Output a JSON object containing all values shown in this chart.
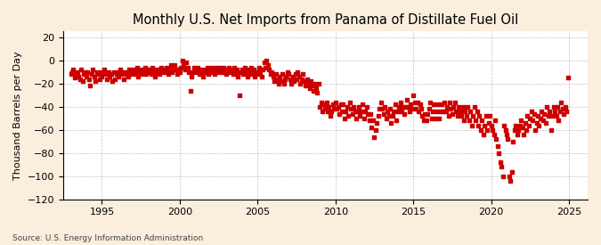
{
  "title": "Monthly U.S. Net Imports from Panama of Distillate Fuel Oil",
  "ylabel": "Thousand Barrels per Day",
  "source": "Source: U.S. Energy Information Administration",
  "background_color": "#faeedd",
  "plot_bg_color": "#ffffff",
  "dot_color": "#cc0000",
  "dot_size": 9,
  "xlim": [
    1992.5,
    2026.2
  ],
  "ylim": [
    -120,
    25
  ],
  "yticks": [
    -120,
    -100,
    -80,
    -60,
    -40,
    -20,
    0,
    20
  ],
  "xticks": [
    1995,
    2000,
    2005,
    2010,
    2015,
    2020,
    2025
  ],
  "grid_color": "#999999",
  "title_fontsize": 10.5,
  "label_fontsize": 8,
  "tick_fontsize": 8,
  "data": [
    [
      1993.0,
      -12
    ],
    [
      1993.08,
      -10
    ],
    [
      1993.17,
      -8
    ],
    [
      1993.25,
      -15
    ],
    [
      1993.33,
      -12
    ],
    [
      1993.42,
      -10
    ],
    [
      1993.5,
      -14
    ],
    [
      1993.58,
      -16
    ],
    [
      1993.67,
      -8
    ],
    [
      1993.75,
      -18
    ],
    [
      1993.83,
      -12
    ],
    [
      1993.92,
      -10
    ],
    [
      1994.0,
      -14
    ],
    [
      1994.08,
      -10
    ],
    [
      1994.17,
      -16
    ],
    [
      1994.25,
      -22
    ],
    [
      1994.33,
      -12
    ],
    [
      1994.42,
      -8
    ],
    [
      1994.5,
      -14
    ],
    [
      1994.58,
      -18
    ],
    [
      1994.67,
      -10
    ],
    [
      1994.75,
      -12
    ],
    [
      1994.83,
      -16
    ],
    [
      1994.92,
      -10
    ],
    [
      1995.0,
      -14
    ],
    [
      1995.08,
      -10
    ],
    [
      1995.17,
      -8
    ],
    [
      1995.25,
      -12
    ],
    [
      1995.33,
      -16
    ],
    [
      1995.42,
      -10
    ],
    [
      1995.5,
      -14
    ],
    [
      1995.58,
      -12
    ],
    [
      1995.67,
      -18
    ],
    [
      1995.75,
      -10
    ],
    [
      1995.83,
      -16
    ],
    [
      1995.92,
      -12
    ],
    [
      1996.0,
      -10
    ],
    [
      1996.08,
      -14
    ],
    [
      1996.17,
      -8
    ],
    [
      1996.25,
      -12
    ],
    [
      1996.33,
      -10
    ],
    [
      1996.42,
      -16
    ],
    [
      1996.5,
      -12
    ],
    [
      1996.58,
      -10
    ],
    [
      1996.67,
      -14
    ],
    [
      1996.75,
      -8
    ],
    [
      1996.83,
      -12
    ],
    [
      1996.92,
      -10
    ],
    [
      1997.0,
      -8
    ],
    [
      1997.08,
      -12
    ],
    [
      1997.17,
      -10
    ],
    [
      1997.25,
      -6
    ],
    [
      1997.33,
      -14
    ],
    [
      1997.42,
      -10
    ],
    [
      1997.5,
      -8
    ],
    [
      1997.58,
      -12
    ],
    [
      1997.67,
      -10
    ],
    [
      1997.75,
      -6
    ],
    [
      1997.83,
      -12
    ],
    [
      1997.92,
      -8
    ],
    [
      1998.0,
      -10
    ],
    [
      1998.08,
      -8
    ],
    [
      1998.17,
      -12
    ],
    [
      1998.25,
      -6
    ],
    [
      1998.33,
      -10
    ],
    [
      1998.42,
      -14
    ],
    [
      1998.5,
      -8
    ],
    [
      1998.58,
      -10
    ],
    [
      1998.67,
      -12
    ],
    [
      1998.75,
      -8
    ],
    [
      1998.83,
      -6
    ],
    [
      1998.92,
      -10
    ],
    [
      1999.0,
      -8
    ],
    [
      1999.08,
      -10
    ],
    [
      1999.17,
      -6
    ],
    [
      1999.25,
      -12
    ],
    [
      1999.33,
      -8
    ],
    [
      1999.42,
      -4
    ],
    [
      1999.5,
      -10
    ],
    [
      1999.58,
      -8
    ],
    [
      1999.67,
      -4
    ],
    [
      1999.75,
      -8
    ],
    [
      1999.83,
      -12
    ],
    [
      1999.92,
      -8
    ],
    [
      2000.0,
      -10
    ],
    [
      2000.08,
      -6
    ],
    [
      2000.17,
      0
    ],
    [
      2000.25,
      -4
    ],
    [
      2000.33,
      -8
    ],
    [
      2000.42,
      -2
    ],
    [
      2000.5,
      -6
    ],
    [
      2000.58,
      -10
    ],
    [
      2000.67,
      -26
    ],
    [
      2000.75,
      -14
    ],
    [
      2000.83,
      -10
    ],
    [
      2000.92,
      -6
    ],
    [
      2001.0,
      -8
    ],
    [
      2001.08,
      -10
    ],
    [
      2001.17,
      -6
    ],
    [
      2001.25,
      -12
    ],
    [
      2001.33,
      -8
    ],
    [
      2001.42,
      -10
    ],
    [
      2001.5,
      -14
    ],
    [
      2001.58,
      -8
    ],
    [
      2001.67,
      -10
    ],
    [
      2001.75,
      -6
    ],
    [
      2001.83,
      -12
    ],
    [
      2001.92,
      -8
    ],
    [
      2002.0,
      -10
    ],
    [
      2002.08,
      -6
    ],
    [
      2002.17,
      -8
    ],
    [
      2002.25,
      -12
    ],
    [
      2002.33,
      -6
    ],
    [
      2002.42,
      -10
    ],
    [
      2002.5,
      -8
    ],
    [
      2002.58,
      -6
    ],
    [
      2002.67,
      -10
    ],
    [
      2002.75,
      -8
    ],
    [
      2002.83,
      -6
    ],
    [
      2002.92,
      -10
    ],
    [
      2003.0,
      -12
    ],
    [
      2003.08,
      -8
    ],
    [
      2003.17,
      -6
    ],
    [
      2003.25,
      -10
    ],
    [
      2003.33,
      -8
    ],
    [
      2003.42,
      -12
    ],
    [
      2003.5,
      -6
    ],
    [
      2003.58,
      -10
    ],
    [
      2003.67,
      -8
    ],
    [
      2003.75,
      -14
    ],
    [
      2003.83,
      -30
    ],
    [
      2003.92,
      -10
    ],
    [
      2004.0,
      -8
    ],
    [
      2004.08,
      -12
    ],
    [
      2004.17,
      -6
    ],
    [
      2004.25,
      -10
    ],
    [
      2004.33,
      -14
    ],
    [
      2004.42,
      -8
    ],
    [
      2004.5,
      -12
    ],
    [
      2004.58,
      -6
    ],
    [
      2004.67,
      -10
    ],
    [
      2004.75,
      -8
    ],
    [
      2004.83,
      -14
    ],
    [
      2004.92,
      -10
    ],
    [
      2005.0,
      -12
    ],
    [
      2005.08,
      -6
    ],
    [
      2005.17,
      -10
    ],
    [
      2005.25,
      -14
    ],
    [
      2005.33,
      -8
    ],
    [
      2005.42,
      -2
    ],
    [
      2005.5,
      -6
    ],
    [
      2005.58,
      0
    ],
    [
      2005.67,
      -4
    ],
    [
      2005.75,
      -8
    ],
    [
      2005.83,
      -12
    ],
    [
      2005.92,
      -10
    ],
    [
      2006.0,
      -14
    ],
    [
      2006.08,
      -18
    ],
    [
      2006.17,
      -12
    ],
    [
      2006.25,
      -16
    ],
    [
      2006.33,
      -20
    ],
    [
      2006.42,
      -14
    ],
    [
      2006.5,
      -18
    ],
    [
      2006.58,
      -12
    ],
    [
      2006.67,
      -20
    ],
    [
      2006.75,
      -16
    ],
    [
      2006.83,
      -14
    ],
    [
      2006.92,
      -10
    ],
    [
      2007.0,
      -12
    ],
    [
      2007.08,
      -16
    ],
    [
      2007.17,
      -20
    ],
    [
      2007.25,
      -14
    ],
    [
      2007.33,
      -18
    ],
    [
      2007.42,
      -12
    ],
    [
      2007.5,
      -16
    ],
    [
      2007.58,
      -10
    ],
    [
      2007.67,
      -14
    ],
    [
      2007.75,
      -20
    ],
    [
      2007.83,
      -16
    ],
    [
      2007.92,
      -12
    ],
    [
      2008.0,
      -18
    ],
    [
      2008.08,
      -22
    ],
    [
      2008.17,
      -16
    ],
    [
      2008.25,
      -20
    ],
    [
      2008.33,
      -24
    ],
    [
      2008.42,
      -18
    ],
    [
      2008.5,
      -22
    ],
    [
      2008.58,
      -26
    ],
    [
      2008.67,
      -20
    ],
    [
      2008.75,
      -24
    ],
    [
      2008.83,
      -28
    ],
    [
      2008.92,
      -20
    ],
    [
      2009.0,
      -40
    ],
    [
      2009.08,
      -36
    ],
    [
      2009.17,
      -44
    ],
    [
      2009.25,
      -38
    ],
    [
      2009.33,
      -42
    ],
    [
      2009.42,
      -36
    ],
    [
      2009.5,
      -44
    ],
    [
      2009.58,
      -40
    ],
    [
      2009.67,
      -48
    ],
    [
      2009.75,
      -44
    ],
    [
      2009.83,
      -38
    ],
    [
      2009.92,
      -42
    ],
    [
      2010.0,
      -36
    ],
    [
      2010.08,
      -42
    ],
    [
      2010.17,
      -40
    ],
    [
      2010.25,
      -46
    ],
    [
      2010.33,
      -38
    ],
    [
      2010.42,
      -44
    ],
    [
      2010.5,
      -38
    ],
    [
      2010.58,
      -50
    ],
    [
      2010.67,
      -44
    ],
    [
      2010.75,
      -40
    ],
    [
      2010.83,
      -48
    ],
    [
      2010.92,
      -36
    ],
    [
      2011.0,
      -42
    ],
    [
      2011.08,
      -46
    ],
    [
      2011.17,
      -40
    ],
    [
      2011.25,
      -44
    ],
    [
      2011.33,
      -50
    ],
    [
      2011.42,
      -44
    ],
    [
      2011.5,
      -40
    ],
    [
      2011.58,
      -48
    ],
    [
      2011.67,
      -44
    ],
    [
      2011.75,
      -38
    ],
    [
      2011.83,
      -50
    ],
    [
      2011.92,
      -44
    ],
    [
      2012.0,
      -40
    ],
    [
      2012.08,
      -46
    ],
    [
      2012.17,
      -52
    ],
    [
      2012.25,
      -46
    ],
    [
      2012.33,
      -58
    ],
    [
      2012.42,
      -52
    ],
    [
      2012.5,
      -66
    ],
    [
      2012.58,
      -60
    ],
    [
      2012.67,
      -54
    ],
    [
      2012.75,
      -48
    ],
    [
      2012.83,
      -42
    ],
    [
      2012.92,
      -36
    ],
    [
      2013.0,
      -42
    ],
    [
      2013.08,
      -46
    ],
    [
      2013.17,
      -40
    ],
    [
      2013.25,
      -50
    ],
    [
      2013.33,
      -44
    ],
    [
      2013.42,
      -48
    ],
    [
      2013.5,
      -42
    ],
    [
      2013.58,
      -54
    ],
    [
      2013.67,
      -48
    ],
    [
      2013.75,
      -44
    ],
    [
      2013.83,
      -38
    ],
    [
      2013.92,
      -52
    ],
    [
      2014.0,
      -44
    ],
    [
      2014.08,
      -40
    ],
    [
      2014.17,
      -36
    ],
    [
      2014.25,
      -44
    ],
    [
      2014.33,
      -40
    ],
    [
      2014.42,
      -46
    ],
    [
      2014.5,
      -40
    ],
    [
      2014.58,
      -34
    ],
    [
      2014.67,
      -40
    ],
    [
      2014.75,
      -44
    ],
    [
      2014.83,
      -38
    ],
    [
      2014.92,
      -42
    ],
    [
      2015.0,
      -30
    ],
    [
      2015.08,
      -36
    ],
    [
      2015.17,
      -42
    ],
    [
      2015.25,
      -36
    ],
    [
      2015.33,
      -44
    ],
    [
      2015.42,
      -38
    ],
    [
      2015.5,
      -42
    ],
    [
      2015.58,
      -48
    ],
    [
      2015.67,
      -52
    ],
    [
      2015.75,
      -46
    ],
    [
      2015.83,
      -52
    ],
    [
      2015.92,
      -46
    ],
    [
      2016.0,
      -42
    ],
    [
      2016.08,
      -36
    ],
    [
      2016.17,
      -50
    ],
    [
      2016.25,
      -44
    ],
    [
      2016.33,
      -38
    ],
    [
      2016.42,
      -50
    ],
    [
      2016.5,
      -44
    ],
    [
      2016.58,
      -38
    ],
    [
      2016.67,
      -50
    ],
    [
      2016.75,
      -44
    ],
    [
      2016.83,
      -38
    ],
    [
      2016.92,
      -44
    ],
    [
      2017.0,
      -36
    ],
    [
      2017.08,
      -44
    ],
    [
      2017.17,
      -40
    ],
    [
      2017.25,
      -48
    ],
    [
      2017.33,
      -36
    ],
    [
      2017.42,
      -42
    ],
    [
      2017.5,
      -46
    ],
    [
      2017.58,
      -40
    ],
    [
      2017.67,
      -36
    ],
    [
      2017.75,
      -44
    ],
    [
      2017.83,
      -48
    ],
    [
      2017.92,
      -40
    ],
    [
      2018.0,
      -44
    ],
    [
      2018.08,
      -48
    ],
    [
      2018.17,
      -40
    ],
    [
      2018.25,
      -52
    ],
    [
      2018.33,
      -44
    ],
    [
      2018.42,
      -48
    ],
    [
      2018.5,
      -40
    ],
    [
      2018.58,
      -52
    ],
    [
      2018.67,
      -44
    ],
    [
      2018.75,
      -56
    ],
    [
      2018.83,
      -48
    ],
    [
      2018.92,
      -40
    ],
    [
      2019.0,
      -52
    ],
    [
      2019.08,
      -44
    ],
    [
      2019.17,
      -56
    ],
    [
      2019.25,
      -48
    ],
    [
      2019.33,
      -60
    ],
    [
      2019.42,
      -52
    ],
    [
      2019.5,
      -64
    ],
    [
      2019.58,
      -56
    ],
    [
      2019.67,
      -48
    ],
    [
      2019.75,
      -60
    ],
    [
      2019.83,
      -54
    ],
    [
      2019.92,
      -48
    ],
    [
      2020.0,
      -56
    ],
    [
      2020.08,
      -60
    ],
    [
      2020.17,
      -64
    ],
    [
      2020.25,
      -52
    ],
    [
      2020.33,
      -68
    ],
    [
      2020.42,
      -74
    ],
    [
      2020.5,
      -80
    ],
    [
      2020.58,
      -88
    ],
    [
      2020.67,
      -92
    ],
    [
      2020.75,
      -100
    ],
    [
      2020.83,
      -56
    ],
    [
      2020.92,
      -60
    ],
    [
      2021.0,
      -64
    ],
    [
      2021.08,
      -68
    ],
    [
      2021.17,
      -100
    ],
    [
      2021.25,
      -104
    ],
    [
      2021.33,
      -96
    ],
    [
      2021.42,
      -70
    ],
    [
      2021.5,
      -60
    ],
    [
      2021.58,
      -56
    ],
    [
      2021.67,
      -64
    ],
    [
      2021.75,
      -60
    ],
    [
      2021.83,
      -56
    ],
    [
      2021.92,
      -52
    ],
    [
      2022.0,
      -58
    ],
    [
      2022.08,
      -64
    ],
    [
      2022.17,
      -54
    ],
    [
      2022.25,
      -60
    ],
    [
      2022.33,
      -48
    ],
    [
      2022.42,
      -56
    ],
    [
      2022.5,
      -50
    ],
    [
      2022.58,
      -44
    ],
    [
      2022.67,
      -52
    ],
    [
      2022.75,
      -46
    ],
    [
      2022.83,
      -60
    ],
    [
      2022.92,
      -54
    ],
    [
      2023.0,
      -48
    ],
    [
      2023.08,
      -56
    ],
    [
      2023.17,
      -50
    ],
    [
      2023.25,
      -44
    ],
    [
      2023.33,
      -52
    ],
    [
      2023.42,
      -46
    ],
    [
      2023.5,
      -54
    ],
    [
      2023.58,
      -40
    ],
    [
      2023.67,
      -48
    ],
    [
      2023.75,
      -44
    ],
    [
      2023.83,
      -60
    ],
    [
      2023.92,
      -48
    ],
    [
      2024.0,
      -40
    ],
    [
      2024.08,
      -44
    ],
    [
      2024.17,
      -48
    ],
    [
      2024.25,
      -40
    ],
    [
      2024.33,
      -52
    ],
    [
      2024.42,
      -44
    ],
    [
      2024.5,
      -36
    ],
    [
      2024.58,
      -42
    ],
    [
      2024.67,
      -46
    ],
    [
      2024.75,
      -40
    ],
    [
      2024.83,
      -44
    ],
    [
      2024.92,
      -15
    ]
  ]
}
